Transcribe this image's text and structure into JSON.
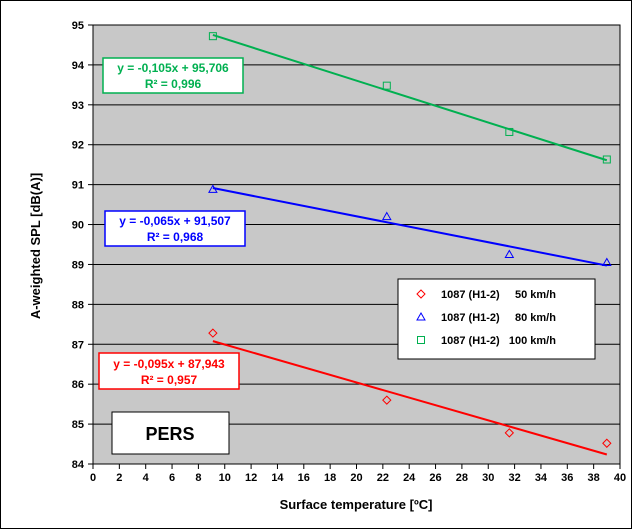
{
  "chart_data": {
    "type": "scatter",
    "xlabel": "Surface temperature  [ºC]",
    "ylabel": "A-weighted SPL  [dB(A)]",
    "xlim": [
      0,
      40
    ],
    "ylim": [
      84,
      95
    ],
    "x_ticks": [
      "0",
      "2",
      "4",
      "6",
      "8",
      "10",
      "12",
      "14",
      "16",
      "18",
      "20",
      "22",
      "24",
      "26",
      "28",
      "30",
      "32",
      "34",
      "36",
      "38",
      "40"
    ],
    "y_ticks": [
      "84",
      "85",
      "86",
      "87",
      "88",
      "89",
      "90",
      "91",
      "92",
      "93",
      "94",
      "95"
    ],
    "grid": "horizontal",
    "plot_background": "#c8c8c8",
    "legend_position": "center-right",
    "series": [
      {
        "name": "1087 (H1-2)     50 km/h",
        "marker": "diamond",
        "color": "#ff0000",
        "x": [
          9.1,
          22.3,
          31.6,
          39.0
        ],
        "y": [
          87.28,
          85.6,
          84.78,
          84.52
        ],
        "trendline": {
          "slope": -0.095,
          "intercept": 87.943,
          "x_range": [
            9.1,
            39.0
          ],
          "equation": "y = -0,095x + 87,943",
          "r2": "R² = 0,957"
        }
      },
      {
        "name": "1087 (H1-2)     80 km/h",
        "marker": "triangle",
        "color": "#0000ff",
        "x": [
          9.1,
          22.3,
          31.6,
          39.0
        ],
        "y": [
          90.88,
          90.2,
          89.25,
          89.05
        ],
        "trendline": {
          "slope": -0.065,
          "intercept": 91.507,
          "x_range": [
            9.1,
            39.0
          ],
          "equation": "y = -0,065x + 91,507",
          "r2": "R² = 0,968"
        }
      },
      {
        "name": "1087 (H1-2)   100 km/h",
        "marker": "square",
        "color": "#00b050",
        "x": [
          9.1,
          22.3,
          31.6,
          39.0
        ],
        "y": [
          94.72,
          93.48,
          92.32,
          91.63
        ],
        "trendline": {
          "slope": -0.105,
          "intercept": 95.706,
          "x_range": [
            9.1,
            39.0
          ],
          "equation": "y = -0,105x + 95,706",
          "r2": "R² = 0,996"
        }
      }
    ],
    "annotation": "PERS"
  }
}
